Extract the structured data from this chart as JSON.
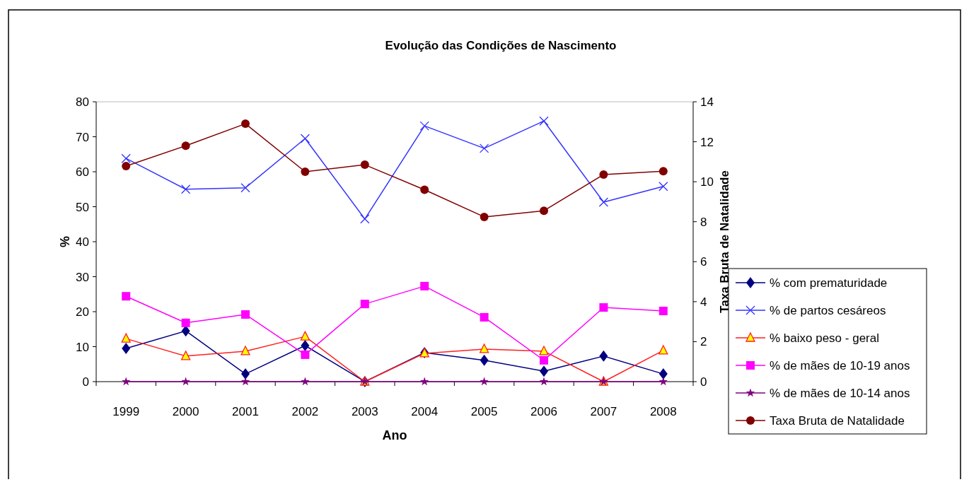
{
  "chart_data": {
    "type": "line",
    "title": "Evolução das Condições de Nascimento",
    "xlabel": "Ano",
    "ylabel": "%",
    "y2label": "Taxa Bruta  de Natalidade",
    "categories": [
      "1999",
      "2000",
      "2001",
      "2002",
      "2003",
      "2004",
      "2005",
      "2006",
      "2007",
      "2008"
    ],
    "ylim": [
      0,
      80
    ],
    "yticks": [
      0,
      10,
      20,
      30,
      40,
      50,
      60,
      70,
      80
    ],
    "y2lim": [
      0,
      14
    ],
    "y2ticks": [
      0,
      2,
      4,
      6,
      8,
      10,
      12,
      14
    ],
    "legend": "right",
    "grid": false,
    "series": [
      {
        "name": "% com prematuridade",
        "color": "#000080",
        "marker": "diamond",
        "values": [
          9.5,
          14.5,
          2.2,
          10.3,
          0,
          8.3,
          6.1,
          3.0,
          7.3,
          2.2
        ]
      },
      {
        "name": "% de partos cesáreos",
        "color": "#3333ff",
        "marker": "cross",
        "values": [
          63.8,
          55,
          55.4,
          69.5,
          46.5,
          73.1,
          66.7,
          74.5,
          51.3,
          55.8
        ]
      },
      {
        "name": "% baixo peso - geral",
        "color": "#ff2020",
        "marker": "triangle",
        "values": [
          12.3,
          7.3,
          8.7,
          12.9,
          0,
          8.1,
          9.3,
          8.7,
          0,
          8.9
        ]
      },
      {
        "name": "% de mães de 10-19 anos",
        "color": "#ff00ff",
        "marker": "square",
        "values": [
          24.4,
          16.8,
          19.2,
          7.7,
          22.2,
          27.3,
          18.4,
          6.1,
          21.2,
          20.2
        ]
      },
      {
        "name": "% de mães de 10-14 anos",
        "color": "#800080",
        "marker": "star",
        "values": [
          0,
          0,
          0,
          0,
          0,
          0,
          0,
          0,
          0,
          0
        ]
      },
      {
        "name": "Taxa Bruta de Natalidade",
        "color": "#800000",
        "marker": "circle",
        "axis": "y2",
        "values": [
          10.78,
          11.8,
          12.9,
          10.5,
          10.85,
          9.6,
          8.24,
          8.55,
          10.36,
          10.53
        ]
      }
    ]
  }
}
